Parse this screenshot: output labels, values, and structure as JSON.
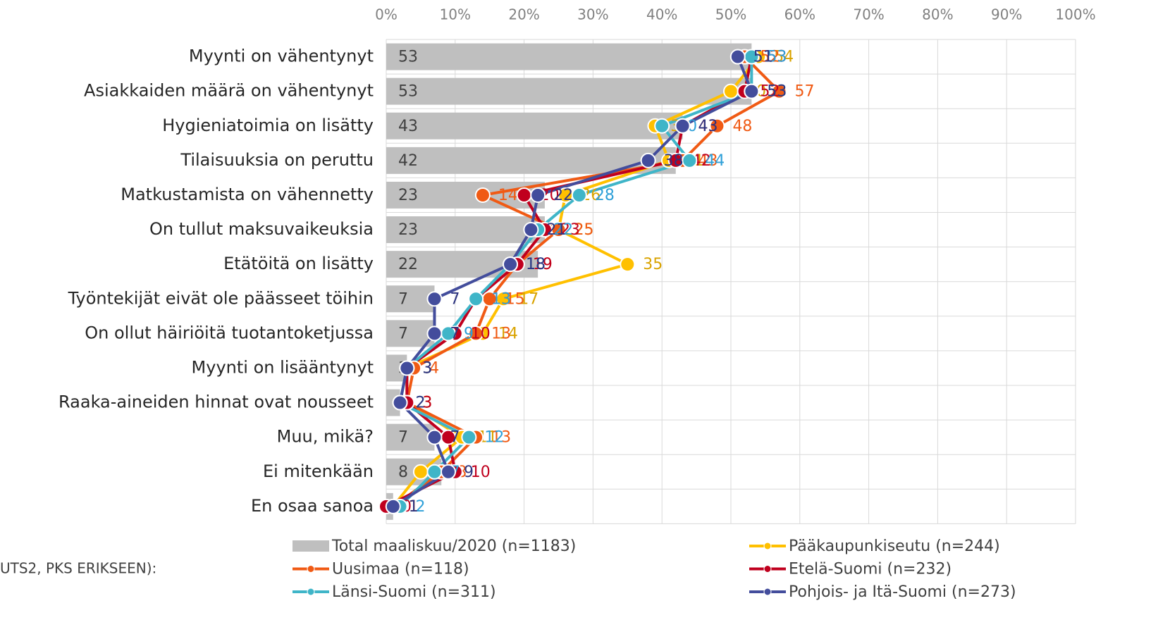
{
  "chart_data": {
    "type": "bar_line",
    "orientation": "horizontal",
    "annotation": "UTS2, PKS ERIKSEEN):",
    "categories": [
      "Myynti on vähentynyt",
      "Asiakkaiden määrä on vähentynyt",
      "Hygieniatoimia on lisätty",
      "Tilaisuuksia on peruttu",
      "Matkustamista on vähennetty",
      "On tullut maksuvaikeuksia",
      "Etätöitä on lisätty",
      "Työntekijät eivät ole päässeet töihin",
      "On ollut häiriöitä tuotantoketjussa",
      "Myynti on lisääntynyt",
      "Raaka-aineiden hinnat ovat nousseet",
      "Muu, mikä?",
      "Ei mitenkään",
      "En osaa sanoa"
    ],
    "xlim": [
      0,
      100
    ],
    "xticks": [
      {
        "value": 0,
        "label": "0%"
      },
      {
        "value": 10,
        "label": "10%"
      },
      {
        "value": 20,
        "label": "20%"
      },
      {
        "value": 30,
        "label": "30%"
      },
      {
        "value": 40,
        "label": "40%"
      },
      {
        "value": 50,
        "label": "50%"
      },
      {
        "value": 60,
        "label": "60%"
      },
      {
        "value": 70,
        "label": "70%"
      },
      {
        "value": 80,
        "label": "80%"
      },
      {
        "value": 90,
        "label": "90%"
      },
      {
        "value": 100,
        "label": "100%"
      }
    ],
    "grid": true,
    "series": [
      {
        "name": "Total maaliskuu/2020 (n=1183)",
        "type": "bar",
        "color": "#bfbfbf",
        "label_color": "#404040",
        "values": [
          53,
          53,
          43,
          42,
          23,
          23,
          22,
          7,
          7,
          3,
          2,
          7,
          8,
          1
        ]
      },
      {
        "name": "Pääkaupunkiseutu (n=244)",
        "type": "line",
        "color": "#ffc000",
        "label_color": "#d9a300",
        "values": [
          54,
          50,
          39,
          41,
          26,
          25,
          35,
          17,
          14,
          3,
          3,
          11,
          5,
          1
        ]
      },
      {
        "name": "Uusimaa (n=118)",
        "type": "line",
        "color": "#f05a14",
        "label_color": "#f05a14",
        "values": [
          52,
          57,
          48,
          43,
          14,
          25,
          19,
          15,
          13,
          4,
          3,
          13,
          8,
          1
        ]
      },
      {
        "name": "Etelä-Suomi (n=232)",
        "type": "line",
        "color": "#c0001e",
        "label_color": "#c0001e",
        "values": [
          53,
          52,
          43,
          42,
          20,
          23,
          19,
          13,
          10,
          3,
          3,
          9,
          10,
          0
        ]
      },
      {
        "name": "Länsi-Suomi (n=311)",
        "type": "line",
        "color": "#3fb5c8",
        "label_color": "#2fa0d8",
        "values": [
          53,
          53,
          40,
          44,
          28,
          22,
          18,
          13,
          9,
          3,
          2,
          12,
          7,
          2
        ]
      },
      {
        "name": "Pohjois- ja Itä-Suomi (n=273)",
        "type": "line",
        "color": "#434d9c",
        "label_color": "#2e3580",
        "values": [
          51,
          53,
          43,
          38,
          22,
          21,
          18,
          7,
          7,
          3,
          2,
          7,
          9,
          1
        ]
      }
    ]
  }
}
